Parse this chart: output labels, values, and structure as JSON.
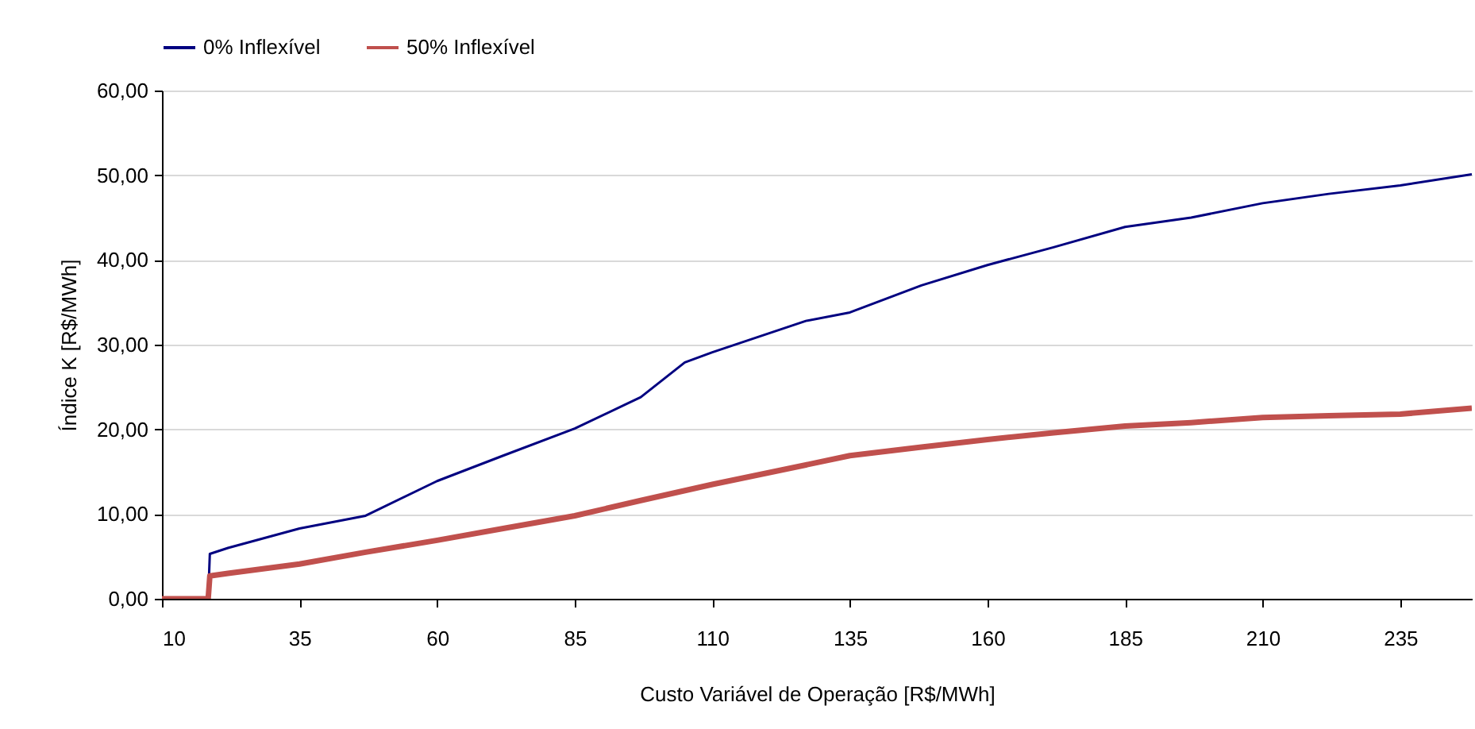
{
  "chart_data": {
    "type": "line",
    "xlabel": "Custo Variável de Operação [R$/MWh]",
    "ylabel": "Índice K [R$/MWh]",
    "xlim": [
      10,
      248
    ],
    "xticks": [
      10,
      35,
      60,
      85,
      110,
      135,
      160,
      185,
      210,
      235
    ],
    "ylim": [
      0,
      60
    ],
    "yticks": [
      {
        "value": 0,
        "label": "0,00"
      },
      {
        "value": 10,
        "label": "10,00"
      },
      {
        "value": 20,
        "label": "20,00"
      },
      {
        "value": 30,
        "label": "30,00"
      },
      {
        "value": 40,
        "label": "40,00"
      },
      {
        "value": 50,
        "label": "50,00"
      },
      {
        "value": 60,
        "label": "60,00"
      }
    ],
    "grid": "y",
    "legend": "top",
    "marker": "none",
    "line_style": "solid",
    "series": [
      {
        "name": "0% Inflexível",
        "color": "#000080",
        "x": [
          10,
          18.4,
          18.7,
          22,
          35,
          47,
          60,
          72,
          85,
          97,
          105,
          110,
          127,
          135,
          148,
          160,
          172,
          185,
          197,
          210,
          222,
          235,
          248
        ],
        "values": [
          0,
          0,
          5.3,
          6.0,
          8.3,
          9.8,
          13.9,
          16.9,
          20.1,
          23.8,
          27.9,
          29.1,
          32.8,
          33.8,
          37.0,
          39.4,
          41.5,
          43.9,
          45.0,
          46.7,
          47.8,
          48.8,
          50.1
        ]
      },
      {
        "name": "50% Inflexível",
        "color": "#c0504d",
        "x": [
          10,
          18.4,
          18.7,
          22,
          35,
          47,
          60,
          72,
          85,
          97,
          110,
          127,
          135,
          148,
          160,
          172,
          185,
          197,
          210,
          222,
          235,
          248
        ],
        "values": [
          0,
          0,
          2.7,
          3.0,
          4.1,
          5.5,
          6.9,
          8.3,
          9.8,
          11.6,
          13.5,
          15.8,
          16.9,
          17.9,
          18.8,
          19.6,
          20.4,
          20.8,
          21.4,
          21.6,
          21.8,
          22.5
        ]
      }
    ]
  }
}
